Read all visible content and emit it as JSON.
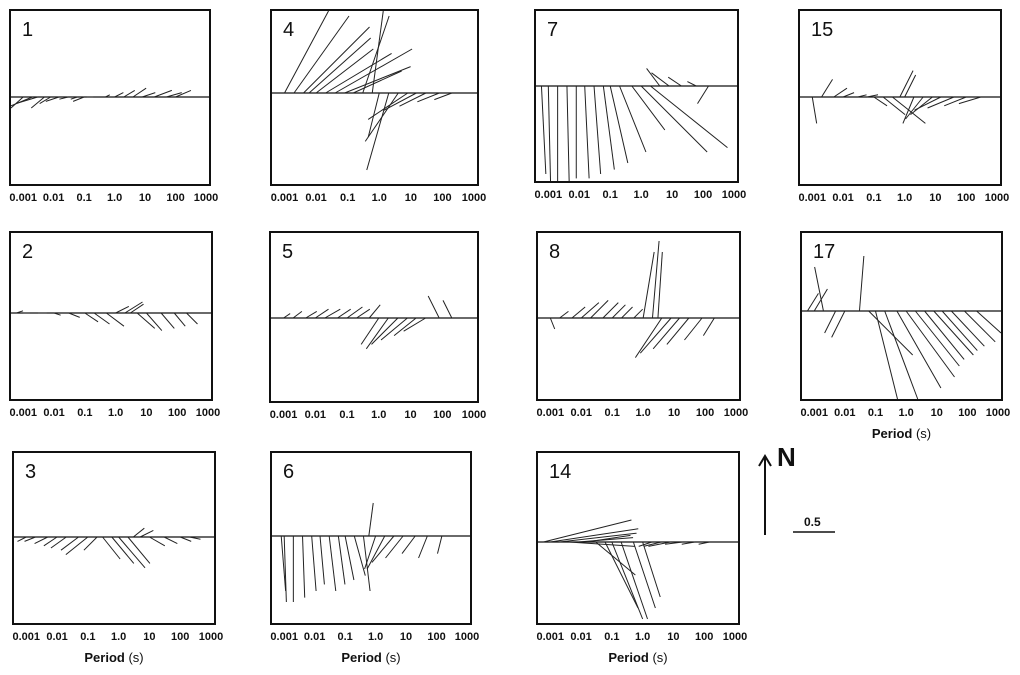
{
  "chart_data": {
    "type": "induction-arrow-panels",
    "x_axis": {
      "scale": "log",
      "tick_labels": [
        "0.001",
        "0.01",
        "0.1",
        "1.0",
        "10",
        "100",
        "1000"
      ],
      "tick_values": [
        0.001,
        0.01,
        0.1,
        1,
        10,
        100,
        1000
      ],
      "xlim": [
        0.0005,
        1000
      ],
      "title_main": "Period",
      "title_unit": "(s)"
    },
    "north_label": "N",
    "scale_bar_label": "0.5",
    "panels": [
      {
        "site": "1",
        "arrows": [
          [
            0.001,
            -0.08,
            -0.05
          ],
          [
            0.002,
            -0.12,
            -0.04
          ],
          [
            0.003,
            -0.1,
            -0.03
          ],
          [
            0.005,
            -0.06,
            -0.05
          ],
          [
            0.008,
            -0.05,
            -0.03
          ],
          [
            0.015,
            -0.06,
            -0.02
          ],
          [
            0.03,
            -0.04,
            -0.01
          ],
          [
            0.06,
            -0.03,
            -0.01
          ],
          [
            0.1,
            -0.05,
            -0.02
          ],
          [
            0.2,
            -0.03,
            0.0
          ],
          [
            0.5,
            0.02,
            0.01
          ],
          [
            1,
            0.04,
            0.02
          ],
          [
            2,
            0.05,
            0.03
          ],
          [
            4,
            0.06,
            0.04
          ],
          [
            8,
            0.06,
            0.02
          ],
          [
            20,
            0.08,
            0.03
          ],
          [
            50,
            0.07,
            0.02
          ],
          [
            100,
            0.07,
            0.03
          ]
        ]
      },
      {
        "site": "4",
        "arrows": [
          [
            0.001,
            0.2,
            0.42
          ],
          [
            0.002,
            0.25,
            0.35
          ],
          [
            0.004,
            0.3,
            0.3
          ],
          [
            0.006,
            0.28,
            0.25
          ],
          [
            0.01,
            0.26,
            0.2
          ],
          [
            0.02,
            0.3,
            0.18
          ],
          [
            0.04,
            0.35,
            0.2
          ],
          [
            0.08,
            0.3,
            0.12
          ],
          [
            0.15,
            0.22,
            0.1
          ],
          [
            0.3,
            0.12,
            0.35
          ],
          [
            0.6,
            0.05,
            0.38
          ],
          [
            1,
            -0.05,
            -0.2
          ],
          [
            2,
            -0.1,
            -0.35
          ],
          [
            4,
            -0.15,
            -0.22
          ],
          [
            8,
            -0.18,
            -0.12
          ],
          [
            15,
            -0.15,
            -0.08
          ],
          [
            30,
            -0.12,
            -0.06
          ],
          [
            80,
            -0.1,
            -0.04
          ],
          [
            200,
            -0.08,
            -0.03
          ]
        ]
      },
      {
        "site": "7",
        "arrows": [
          [
            0.0006,
            0.02,
            -0.4
          ],
          [
            0.001,
            0.01,
            -0.45
          ],
          [
            0.002,
            0.0,
            -0.45
          ],
          [
            0.004,
            0.01,
            -0.45
          ],
          [
            0.008,
            0.0,
            -0.42
          ],
          [
            0.015,
            0.02,
            -0.42
          ],
          [
            0.03,
            0.03,
            -0.4
          ],
          [
            0.06,
            0.05,
            -0.38
          ],
          [
            0.1,
            0.08,
            -0.35
          ],
          [
            0.2,
            0.12,
            -0.3
          ],
          [
            0.5,
            0.15,
            -0.2
          ],
          [
            1,
            0.3,
            -0.3
          ],
          [
            2,
            0.35,
            -0.28
          ],
          [
            4,
            -0.06,
            0.08
          ],
          [
            8,
            -0.08,
            0.06
          ],
          [
            20,
            -0.06,
            0.04
          ],
          [
            60,
            -0.04,
            0.02
          ],
          [
            150,
            -0.05,
            -0.08
          ]
        ]
      },
      {
        "site": "15",
        "arrows": [
          [
            0.001,
            0.02,
            -0.12
          ],
          [
            0.002,
            0.05,
            0.08
          ],
          [
            0.005,
            0.06,
            0.04
          ],
          [
            0.01,
            0.05,
            0.02
          ],
          [
            0.03,
            0.04,
            0.01
          ],
          [
            0.06,
            0.05,
            0.01
          ],
          [
            0.1,
            0.06,
            -0.04
          ],
          [
            0.2,
            0.1,
            -0.08
          ],
          [
            0.4,
            0.15,
            -0.12
          ],
          [
            0.7,
            0.06,
            0.12
          ],
          [
            1,
            0.05,
            0.1
          ],
          [
            2,
            -0.05,
            -0.12
          ],
          [
            4,
            -0.08,
            -0.1
          ],
          [
            8,
            -0.1,
            -0.08
          ],
          [
            15,
            -0.12,
            -0.06
          ],
          [
            40,
            -0.12,
            -0.05
          ],
          [
            100,
            -0.1,
            -0.04
          ],
          [
            300,
            -0.1,
            -0.03
          ]
        ]
      },
      {
        "site": "2",
        "arrows": [
          [
            0.0006,
            0.03,
            0.01
          ],
          [
            0.001,
            0.03,
            0.0
          ],
          [
            0.003,
            0.04,
            0.0
          ],
          [
            0.01,
            0.03,
            -0.01
          ],
          [
            0.03,
            0.05,
            -0.02
          ],
          [
            0.1,
            0.06,
            -0.04
          ],
          [
            0.2,
            0.07,
            -0.05
          ],
          [
            0.5,
            0.08,
            -0.06
          ],
          [
            1,
            0.06,
            0.03
          ],
          [
            2,
            0.08,
            0.05
          ],
          [
            3,
            0.06,
            0.04
          ],
          [
            5,
            0.08,
            -0.07
          ],
          [
            10,
            0.07,
            -0.08
          ],
          [
            30,
            0.06,
            -0.07
          ],
          [
            80,
            0.05,
            -0.06
          ],
          [
            200,
            0.05,
            -0.05
          ]
        ]
      },
      {
        "site": "5",
        "arrows": [
          [
            0.001,
            0.03,
            0.02
          ],
          [
            0.002,
            0.04,
            0.03
          ],
          [
            0.005,
            0.05,
            0.03
          ],
          [
            0.01,
            0.06,
            0.04
          ],
          [
            0.02,
            0.07,
            0.04
          ],
          [
            0.05,
            0.06,
            0.04
          ],
          [
            0.1,
            0.07,
            0.05
          ],
          [
            0.2,
            0.06,
            0.04
          ],
          [
            0.5,
            0.05,
            0.06
          ],
          [
            1,
            -0.08,
            -0.12
          ],
          [
            2,
            -0.1,
            -0.14
          ],
          [
            4,
            -0.12,
            -0.12
          ],
          [
            8,
            -0.12,
            -0.1
          ],
          [
            15,
            -0.1,
            -0.08
          ],
          [
            30,
            -0.1,
            -0.06
          ],
          [
            80,
            -0.05,
            0.1
          ],
          [
            200,
            -0.04,
            0.08
          ]
        ]
      },
      {
        "site": "8",
        "arrows": [
          [
            0.001,
            0.02,
            -0.05
          ],
          [
            0.002,
            0.04,
            0.03
          ],
          [
            0.005,
            0.06,
            0.05
          ],
          [
            0.01,
            0.08,
            0.07
          ],
          [
            0.02,
            0.08,
            0.08
          ],
          [
            0.05,
            0.07,
            0.07
          ],
          [
            0.1,
            0.06,
            0.06
          ],
          [
            0.2,
            0.05,
            0.05
          ],
          [
            0.5,
            0.04,
            0.04
          ],
          [
            1,
            0.05,
            0.3
          ],
          [
            2,
            0.03,
            0.35
          ],
          [
            3,
            0.02,
            0.3
          ],
          [
            4,
            -0.12,
            -0.18
          ],
          [
            8,
            -0.14,
            -0.16
          ],
          [
            15,
            -0.12,
            -0.14
          ],
          [
            30,
            -0.1,
            -0.12
          ],
          [
            80,
            -0.08,
            -0.1
          ],
          [
            200,
            -0.05,
            -0.08
          ]
        ]
      },
      {
        "site": "17",
        "arrows": [
          [
            0.0006,
            0.05,
            0.08
          ],
          [
            0.001,
            0.06,
            0.1
          ],
          [
            0.002,
            -0.04,
            0.2
          ],
          [
            0.005,
            -0.05,
            -0.1
          ],
          [
            0.01,
            -0.06,
            -0.12
          ],
          [
            0.03,
            0.02,
            0.25
          ],
          [
            0.06,
            0.2,
            -0.2
          ],
          [
            0.1,
            0.1,
            -0.4
          ],
          [
            0.2,
            0.15,
            -0.4
          ],
          [
            0.5,
            0.2,
            -0.35
          ],
          [
            1,
            0.22,
            -0.3
          ],
          [
            2,
            0.2,
            -0.25
          ],
          [
            4,
            0.18,
            -0.22
          ],
          [
            8,
            0.18,
            -0.2
          ],
          [
            15,
            0.16,
            -0.18
          ],
          [
            30,
            0.15,
            -0.16
          ],
          [
            80,
            0.14,
            -0.14
          ],
          [
            200,
            0.12,
            -0.1
          ]
        ]
      },
      {
        "site": "3",
        "arrows": [
          [
            0.001,
            -0.04,
            -0.02
          ],
          [
            0.002,
            -0.05,
            -0.02
          ],
          [
            0.005,
            -0.06,
            -0.03
          ],
          [
            0.01,
            -0.06,
            -0.04
          ],
          [
            0.02,
            -0.07,
            -0.05
          ],
          [
            0.05,
            -0.08,
            -0.06
          ],
          [
            0.1,
            -0.1,
            -0.08
          ],
          [
            0.2,
            -0.06,
            -0.06
          ],
          [
            0.3,
            0.08,
            -0.1
          ],
          [
            0.6,
            0.1,
            -0.12
          ],
          [
            1,
            0.12,
            -0.14
          ],
          [
            2,
            0.1,
            -0.12
          ],
          [
            3,
            0.05,
            0.04
          ],
          [
            5,
            0.06,
            0.03
          ],
          [
            10,
            0.07,
            -0.04
          ],
          [
            30,
            0.06,
            -0.03
          ],
          [
            100,
            0.05,
            -0.02
          ],
          [
            200,
            0.05,
            -0.01
          ]
        ]
      },
      {
        "site": "6",
        "arrows": [
          [
            0.0008,
            0.02,
            -0.25
          ],
          [
            0.001,
            0.01,
            -0.3
          ],
          [
            0.002,
            0.0,
            -0.3
          ],
          [
            0.004,
            0.01,
            -0.28
          ],
          [
            0.008,
            0.02,
            -0.25
          ],
          [
            0.015,
            0.02,
            -0.22
          ],
          [
            0.03,
            0.03,
            -0.25
          ],
          [
            0.06,
            0.03,
            -0.22
          ],
          [
            0.1,
            0.04,
            -0.2
          ],
          [
            0.2,
            0.05,
            -0.18
          ],
          [
            0.4,
            0.03,
            -0.25
          ],
          [
            0.6,
            0.02,
            0.15
          ],
          [
            1,
            -0.05,
            -0.15
          ],
          [
            2,
            -0.08,
            -0.15
          ],
          [
            4,
            -0.1,
            -0.12
          ],
          [
            8,
            -0.08,
            -0.1
          ],
          [
            20,
            -0.06,
            -0.08
          ],
          [
            50,
            -0.04,
            -0.1
          ],
          [
            150,
            -0.02,
            -0.08
          ]
        ]
      },
      {
        "site": "14",
        "arrows": [
          [
            0.0006,
            0.4,
            0.1
          ],
          [
            0.001,
            0.4,
            0.06
          ],
          [
            0.002,
            0.35,
            0.04
          ],
          [
            0.004,
            0.3,
            -0.02
          ],
          [
            0.008,
            0.25,
            0.02
          ],
          [
            0.015,
            0.2,
            0.03
          ],
          [
            0.03,
            0.18,
            -0.15
          ],
          [
            0.06,
            0.15,
            -0.3
          ],
          [
            0.1,
            0.14,
            -0.35
          ],
          [
            0.2,
            0.12,
            -0.35
          ],
          [
            0.5,
            0.1,
            -0.3
          ],
          [
            1,
            0.08,
            -0.25
          ],
          [
            2,
            -0.06,
            -0.02
          ],
          [
            4,
            -0.08,
            -0.02
          ],
          [
            8,
            -0.1,
            -0.02
          ],
          [
            20,
            -0.08,
            -0.01
          ],
          [
            50,
            -0.06,
            -0.01
          ],
          [
            150,
            -0.05,
            -0.01
          ]
        ]
      }
    ]
  }
}
